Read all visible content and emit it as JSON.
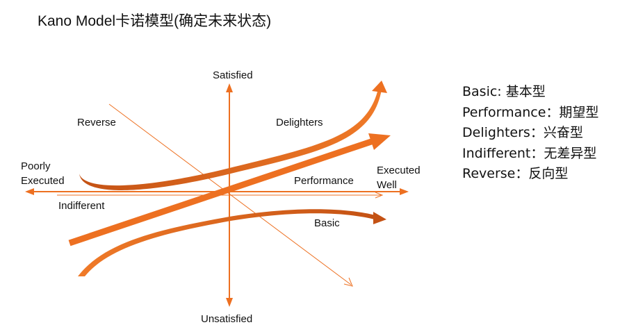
{
  "title": "Kano Model卡诺模型(确定未来状态)",
  "colors": {
    "accent": "#ed7021",
    "accent_dark": "#c45214"
  },
  "axes": {
    "top": "Satisfied",
    "bottom": "Unsatisfied",
    "left_line1": "Poorly",
    "left_line2": "Executed",
    "right_line1": "Executed",
    "right_line2": "Well"
  },
  "curves": {
    "reverse": "Reverse",
    "delighters": "Delighters",
    "performance": "Performance",
    "indifferent": "Indifferent",
    "basic": "Basic"
  },
  "legend": [
    "Basic: 基本型",
    "Performance：期望型",
    "Delighters：兴奋型",
    "Indifferent：无差异型",
    "Reverse：反向型"
  ]
}
